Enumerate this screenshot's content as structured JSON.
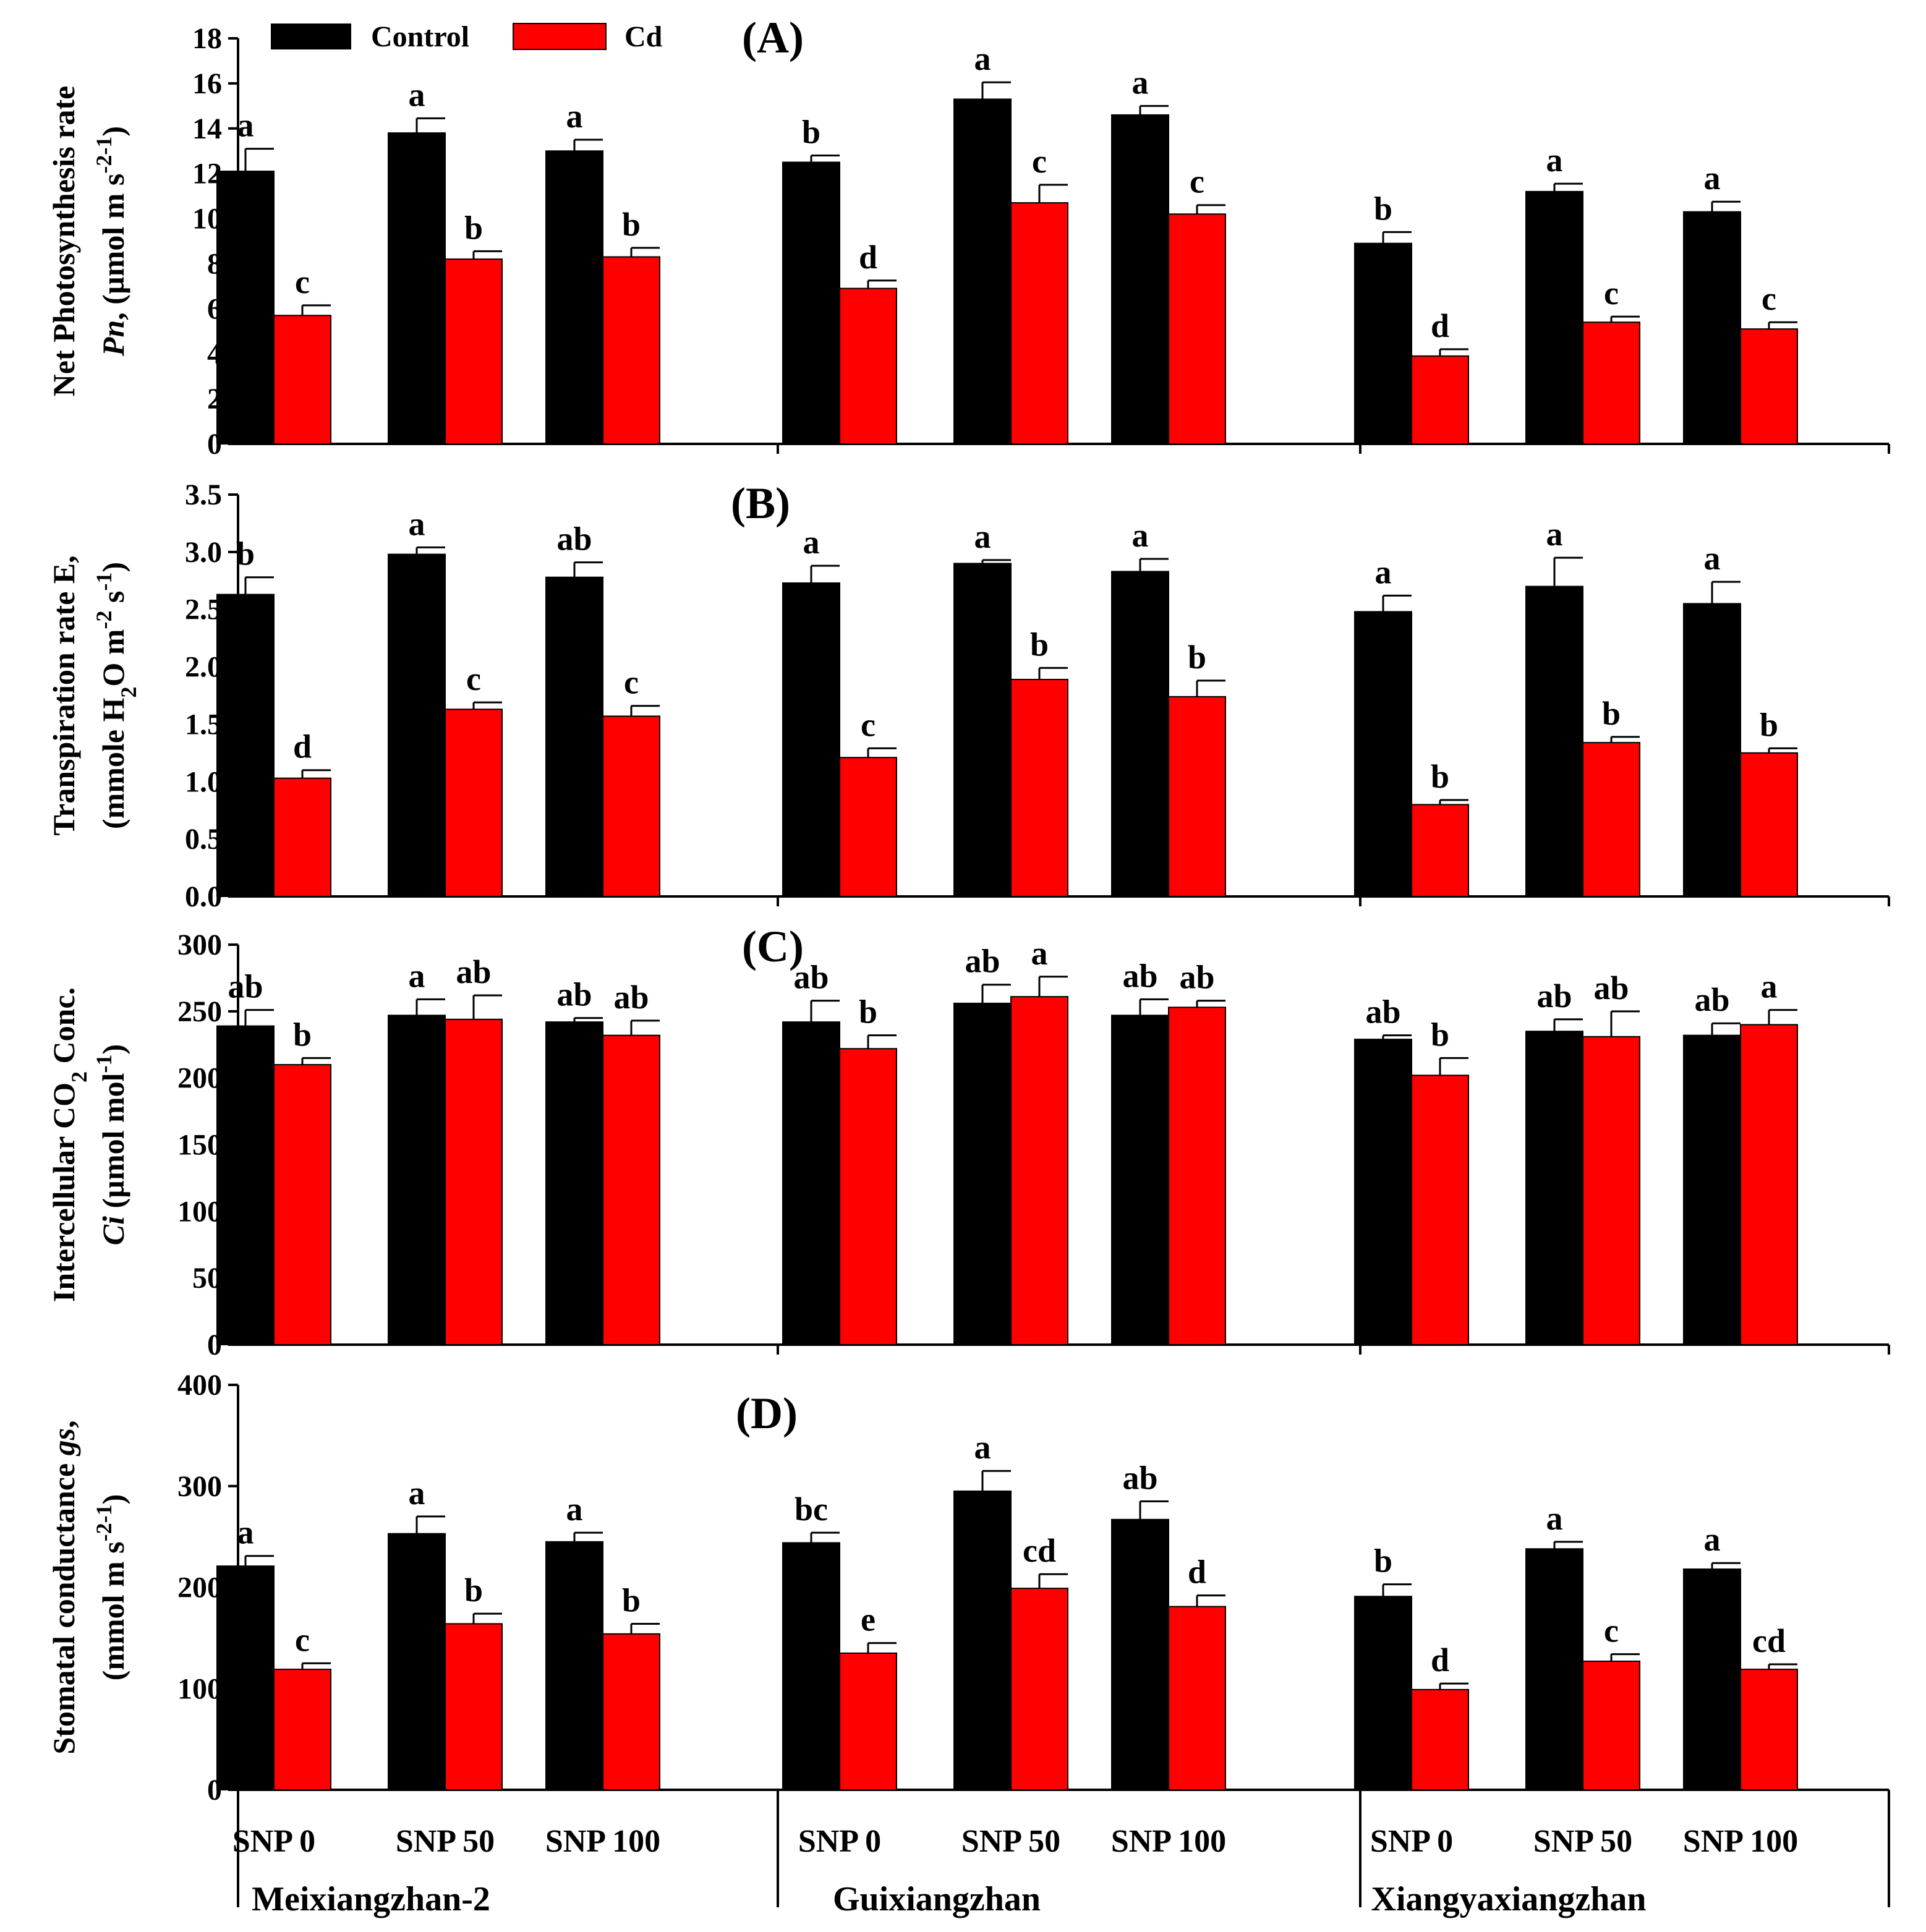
{
  "legend": {
    "items": [
      {
        "label": "Control",
        "color": "#000000"
      },
      {
        "label": "Cd",
        "color": "#ff0000"
      }
    ]
  },
  "treatments": [
    "SNP 0",
    "SNP 50",
    "SNP 100"
  ],
  "cultivars": [
    "Meixiangzhan-2",
    "Guixiangzhan",
    "Xiangyaxiangzhan"
  ],
  "chart_data": [
    {
      "type": "bar",
      "panel_label": "(A)",
      "ylabel_line1": "Net Photosynthesis rate",
      "ylabel_line2": {
        "italic": "Pn",
        "rest": ", (µmol m",
        "sup1": "-2",
        "mid": " s",
        "sup2": "-1",
        "end": ")"
      },
      "ylim": [
        0,
        18
      ],
      "yticks": [
        0,
        2,
        4,
        6,
        8,
        10,
        12,
        14,
        16,
        18
      ],
      "ytick_labels": [
        "0",
        "2",
        "4",
        "6",
        "8",
        "10",
        "12",
        "14",
        "16",
        "18"
      ],
      "series": [
        {
          "name": "Control",
          "values": [
            12.1,
            13.8,
            13.0,
            12.5,
            15.3,
            14.6,
            8.9,
            11.2,
            10.3
          ],
          "errors": [
            1.0,
            0.65,
            0.5,
            0.3,
            0.75,
            0.4,
            0.5,
            0.35,
            0.45
          ],
          "letters": [
            "a",
            "a",
            "a",
            "b",
            "a",
            "a",
            "b",
            "a",
            "a"
          ]
        },
        {
          "name": "Cd",
          "values": [
            5.7,
            8.2,
            8.3,
            6.9,
            10.7,
            10.2,
            3.9,
            5.4,
            5.1
          ],
          "errors": [
            0.45,
            0.35,
            0.4,
            0.35,
            0.8,
            0.4,
            0.3,
            0.25,
            0.3
          ],
          "letters": [
            "c",
            "b",
            "b",
            "d",
            "c",
            "c",
            "d",
            "c",
            "c"
          ]
        }
      ]
    },
    {
      "type": "bar",
      "panel_label": "(B)",
      "ylabel_line1": "Transpiration rate E,",
      "ylabel_line2": {
        "rest": "(mmole H",
        "sub": "2",
        "mid": "O m",
        "sup1": "-2",
        "mid2": " s",
        "sup2": "-1",
        "end": ")"
      },
      "ylim": [
        0,
        3.5
      ],
      "yticks": [
        0,
        0.5,
        1.0,
        1.5,
        2.0,
        2.5,
        3.0,
        3.5
      ],
      "ytick_labels": [
        "0.0",
        "0.5",
        "1.0",
        "1.5",
        "2.0",
        "2.5",
        "3.0",
        "3.5"
      ],
      "series": [
        {
          "name": "Control",
          "values": [
            2.63,
            2.98,
            2.78,
            2.73,
            2.9,
            2.83,
            2.48,
            2.7,
            2.55
          ],
          "errors": [
            0.15,
            0.06,
            0.13,
            0.15,
            0.03,
            0.11,
            0.14,
            0.25,
            0.19
          ],
          "letters": [
            "b",
            "a",
            "ab",
            "a",
            "a",
            "a",
            "a",
            "a",
            "a"
          ]
        },
        {
          "name": "Cd",
          "values": [
            1.03,
            1.63,
            1.57,
            1.21,
            1.89,
            1.74,
            0.8,
            1.34,
            1.25
          ],
          "errors": [
            0.07,
            0.06,
            0.09,
            0.08,
            0.1,
            0.14,
            0.04,
            0.05,
            0.04
          ],
          "letters": [
            "d",
            "c",
            "c",
            "c",
            "b",
            "b",
            "b",
            "b",
            "b"
          ]
        }
      ]
    },
    {
      "type": "bar",
      "panel_label": "(C)",
      "ylabel_line1": "Intercellular CO2 Conc.",
      "ylabel_line1_parts": {
        "pre": "Intercellular CO",
        "sub": "2",
        "post": " Conc."
      },
      "ylabel_line2": {
        "italic": "Ci",
        "rest": " (µmol mol",
        "sup1": "-1",
        "end": ")"
      },
      "ylim": [
        0,
        300
      ],
      "yticks": [
        0,
        50,
        100,
        150,
        200,
        250,
        300
      ],
      "ytick_labels": [
        "0",
        "50",
        "100",
        "150",
        "200",
        "250",
        "300"
      ],
      "series": [
        {
          "name": "Control",
          "values": [
            239,
            247,
            242,
            242,
            256,
            247,
            229,
            235,
            232
          ],
          "errors": [
            12,
            12,
            3,
            16,
            14,
            12,
            3,
            9,
            9
          ],
          "letters": [
            "ab",
            "a",
            "ab",
            "ab",
            "ab",
            "ab",
            "ab",
            "ab",
            "ab"
          ]
        },
        {
          "name": "Cd",
          "values": [
            210,
            244,
            232,
            222,
            261,
            253,
            202,
            231,
            240
          ],
          "errors": [
            5,
            18,
            11,
            10,
            15,
            5,
            13,
            19,
            11
          ],
          "letters": [
            "b",
            "ab",
            "ab",
            "b",
            "a",
            "ab",
            "b",
            "ab",
            "a"
          ]
        }
      ]
    },
    {
      "type": "bar",
      "panel_label": "(D)",
      "ylabel_line1": "Stomatal conductance gs,",
      "ylabel_line1_parts": {
        "pre": "Stomatal conductance ",
        "italic": "gs",
        "post": ","
      },
      "ylabel_line2": {
        "rest": "(mmol m",
        "sup1": "-2",
        "mid": " s",
        "sup2": "-1",
        "end": ")"
      },
      "ylim": [
        0,
        400
      ],
      "yticks": [
        0,
        100,
        200,
        300,
        400
      ],
      "ytick_labels": [
        "0",
        "100",
        "200",
        "300",
        "400"
      ],
      "series": [
        {
          "name": "Control",
          "values": [
            221,
            253,
            245,
            244,
            295,
            267,
            191,
            238,
            218
          ],
          "errors": [
            10,
            17,
            9,
            10,
            20,
            18,
            12,
            7,
            6
          ],
          "letters": [
            "a",
            "a",
            "a",
            "bc",
            "a",
            "ab",
            "b",
            "a",
            "a"
          ]
        },
        {
          "name": "Cd",
          "values": [
            119,
            164,
            154,
            135,
            199,
            181,
            99,
            127,
            119
          ],
          "errors": [
            6,
            10,
            10,
            10,
            14,
            11,
            6,
            7,
            5
          ],
          "letters": [
            "c",
            "b",
            "b",
            "e",
            "cd",
            "d",
            "d",
            "c",
            "cd"
          ]
        }
      ]
    }
  ]
}
